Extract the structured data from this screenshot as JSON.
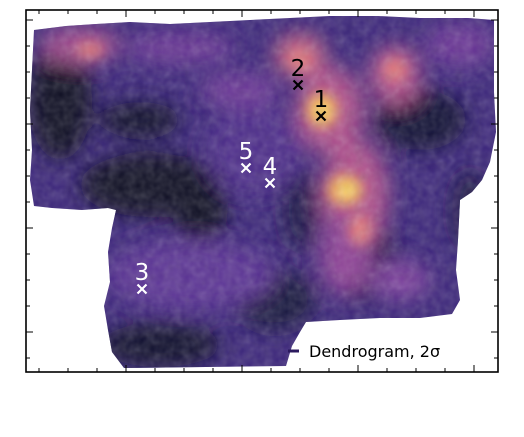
{
  "figure": {
    "legend": {
      "label": "Dendrogram, 2σ",
      "marker_color": "#2b1a5e"
    },
    "markers": [
      {
        "id": "1",
        "label": "1",
        "color": "#000000"
      },
      {
        "id": "2",
        "label": "2",
        "color": "#000000"
      },
      {
        "id": "3",
        "label": "3",
        "color": "#ffffff"
      },
      {
        "id": "4",
        "label": "4",
        "color": "#ffffff"
      },
      {
        "id": "5",
        "label": "5",
        "color": "#ffffff"
      }
    ],
    "colormap": [
      "#0b0c24",
      "#2b1a5e",
      "#4b2c8a",
      "#7a3c9c",
      "#b04f8c",
      "#e0787a",
      "#f3a85a",
      "#fbe36a"
    ]
  }
}
